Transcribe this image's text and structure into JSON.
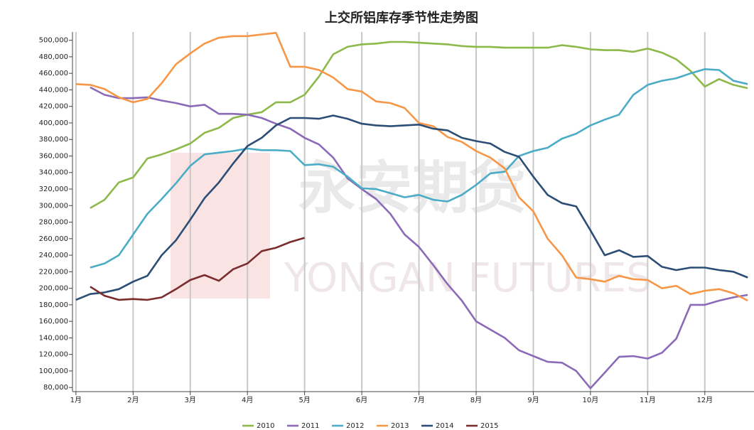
{
  "chart_data": {
    "type": "line",
    "title": "上交所铝库存季节性走势图",
    "watermark": {
      "cn": "永安期货",
      "en": "YONGAN FUTURES"
    },
    "x": [
      1,
      1.25,
      1.5,
      1.75,
      2,
      2.25,
      2.5,
      2.75,
      3,
      3.25,
      3.5,
      3.75,
      4,
      4.25,
      4.5,
      4.75,
      5,
      5.25,
      5.5,
      5.75,
      6,
      6.25,
      6.5,
      6.75,
      7,
      7.25,
      7.5,
      7.75,
      8,
      8.25,
      8.5,
      8.75,
      9,
      9.25,
      9.5,
      9.75,
      10,
      10.25,
      10.5,
      10.75,
      11,
      11.25,
      11.5,
      11.75,
      12,
      12.25,
      12.5,
      12.75
    ],
    "xlim": [
      0.94,
      12.86
    ],
    "xticks": [
      {
        "value": 1,
        "label": "1月"
      },
      {
        "value": 2,
        "label": "2月"
      },
      {
        "value": 3,
        "label": "3月"
      },
      {
        "value": 4,
        "label": "4月"
      },
      {
        "value": 5,
        "label": "5月"
      },
      {
        "value": 6,
        "label": "6月"
      },
      {
        "value": 7,
        "label": "7月"
      },
      {
        "value": 8,
        "label": "8月"
      },
      {
        "value": 9,
        "label": "9月"
      },
      {
        "value": 10,
        "label": "10月"
      },
      {
        "value": 11,
        "label": "11月"
      },
      {
        "value": 12,
        "label": "12月"
      }
    ],
    "ylim": [
      75000,
      510000
    ],
    "yticks": [
      {
        "value": 80000,
        "label": "80,000"
      },
      {
        "value": 100000,
        "label": "100,000"
      },
      {
        "value": 120000,
        "label": "120,000"
      },
      {
        "value": 140000,
        "label": "140,000"
      },
      {
        "value": 160000,
        "label": "160,000"
      },
      {
        "value": 180000,
        "label": "180,000"
      },
      {
        "value": 200000,
        "label": "200,000"
      },
      {
        "value": 220000,
        "label": "220,000"
      },
      {
        "value": 240000,
        "label": "240,000"
      },
      {
        "value": 260000,
        "label": "260,000"
      },
      {
        "value": 280000,
        "label": "280,000"
      },
      {
        "value": 300000,
        "label": "300,000"
      },
      {
        "value": 320000,
        "label": "320,000"
      },
      {
        "value": 340000,
        "label": "340,000"
      },
      {
        "value": 360000,
        "label": "360,000"
      },
      {
        "value": 380000,
        "label": "380,000"
      },
      {
        "value": 400000,
        "label": "400,000"
      },
      {
        "value": 420000,
        "label": "420,000"
      },
      {
        "value": 440000,
        "label": "440,000"
      },
      {
        "value": 460000,
        "label": "460,000"
      },
      {
        "value": 480000,
        "label": "480,000"
      },
      {
        "value": 500000,
        "label": "500,000"
      }
    ],
    "grid": "x",
    "legend": "bottom",
    "series": [
      {
        "name": "2010",
        "color": "#8db84a",
        "values": [
          null,
          297000,
          307000,
          328000,
          334000,
          357000,
          362000,
          368000,
          375000,
          388000,
          394000,
          406000,
          410000,
          413000,
          425000,
          425000,
          434000,
          456000,
          483000,
          492000,
          495000,
          496000,
          498000,
          498000,
          497000,
          496000,
          495000,
          493000,
          492000,
          492000,
          491000,
          491000,
          491000,
          491000,
          494000,
          492000,
          489000,
          488000,
          488000,
          486000,
          490000,
          485000,
          477000,
          463000,
          444000,
          453000,
          446000,
          442000
        ]
      },
      {
        "name": "2011",
        "color": "#8b6ab8",
        "values": [
          null,
          443000,
          434000,
          430000,
          430000,
          431000,
          427000,
          424000,
          420000,
          422000,
          411000,
          411000,
          410000,
          406000,
          399000,
          393000,
          382000,
          374000,
          358000,
          333000,
          320000,
          308000,
          290000,
          265000,
          250000,
          228000,
          205000,
          185000,
          160000,
          150000,
          140000,
          125000,
          118000,
          111000,
          110000,
          100000,
          79000,
          98000,
          117000,
          118000,
          115000,
          122000,
          139000,
          180000,
          180000,
          185000,
          189000,
          192000
        ]
      },
      {
        "name": "2012",
        "color": "#4bacc6",
        "values": [
          null,
          225000,
          230000,
          240000,
          265000,
          290000,
          308000,
          327000,
          348000,
          362000,
          364000,
          366000,
          369000,
          367000,
          367000,
          366000,
          349000,
          350000,
          347000,
          335000,
          321000,
          320000,
          315000,
          310000,
          313000,
          307000,
          305000,
          313000,
          325000,
          339000,
          341000,
          360000,
          366000,
          370000,
          381000,
          387000,
          397000,
          404000,
          410000,
          434000,
          446000,
          451000,
          454000,
          460000,
          465000,
          464000,
          451000,
          447000
        ]
      },
      {
        "name": "2013",
        "color": "#f79646",
        "values": [
          447000,
          446000,
          441000,
          431000,
          425000,
          429000,
          448000,
          471000,
          484000,
          496000,
          503000,
          505000,
          505000,
          507000,
          509000,
          468000,
          468000,
          464000,
          455000,
          441000,
          438000,
          426000,
          424000,
          418000,
          400000,
          396000,
          383000,
          377000,
          366000,
          358000,
          345000,
          310000,
          293000,
          260000,
          240000,
          213000,
          211000,
          208000,
          215000,
          211000,
          210000,
          200000,
          203000,
          193000,
          197000,
          199000,
          194000,
          185000
        ]
      },
      {
        "name": "2014",
        "color": "#2c4d75",
        "values": [
          186000,
          193000,
          195000,
          199000,
          208000,
          215000,
          240000,
          258000,
          283000,
          309000,
          328000,
          351000,
          372000,
          382000,
          397000,
          406000,
          406000,
          405000,
          409000,
          405000,
          399000,
          397000,
          396000,
          397000,
          398000,
          393000,
          391000,
          382000,
          378000,
          375000,
          365000,
          359000,
          335000,
          313000,
          303000,
          299000,
          270000,
          240000,
          246000,
          238000,
          239000,
          226000,
          222000,
          225000,
          225000,
          222000,
          220000,
          213000
        ]
      },
      {
        "name": "2015",
        "color": "#7b2c2c",
        "values": [
          null,
          202000,
          191000,
          186000,
          187000,
          186000,
          189000,
          199000,
          210000,
          216000,
          209000,
          223000,
          230000,
          245000,
          249000,
          256000,
          261000,
          null,
          null,
          null,
          null,
          null,
          null,
          null,
          null,
          null,
          null,
          null,
          null,
          null,
          null,
          null,
          null,
          null,
          null,
          null,
          null,
          null,
          null,
          null,
          null,
          null,
          null,
          null,
          null,
          null,
          null,
          null
        ]
      }
    ]
  }
}
